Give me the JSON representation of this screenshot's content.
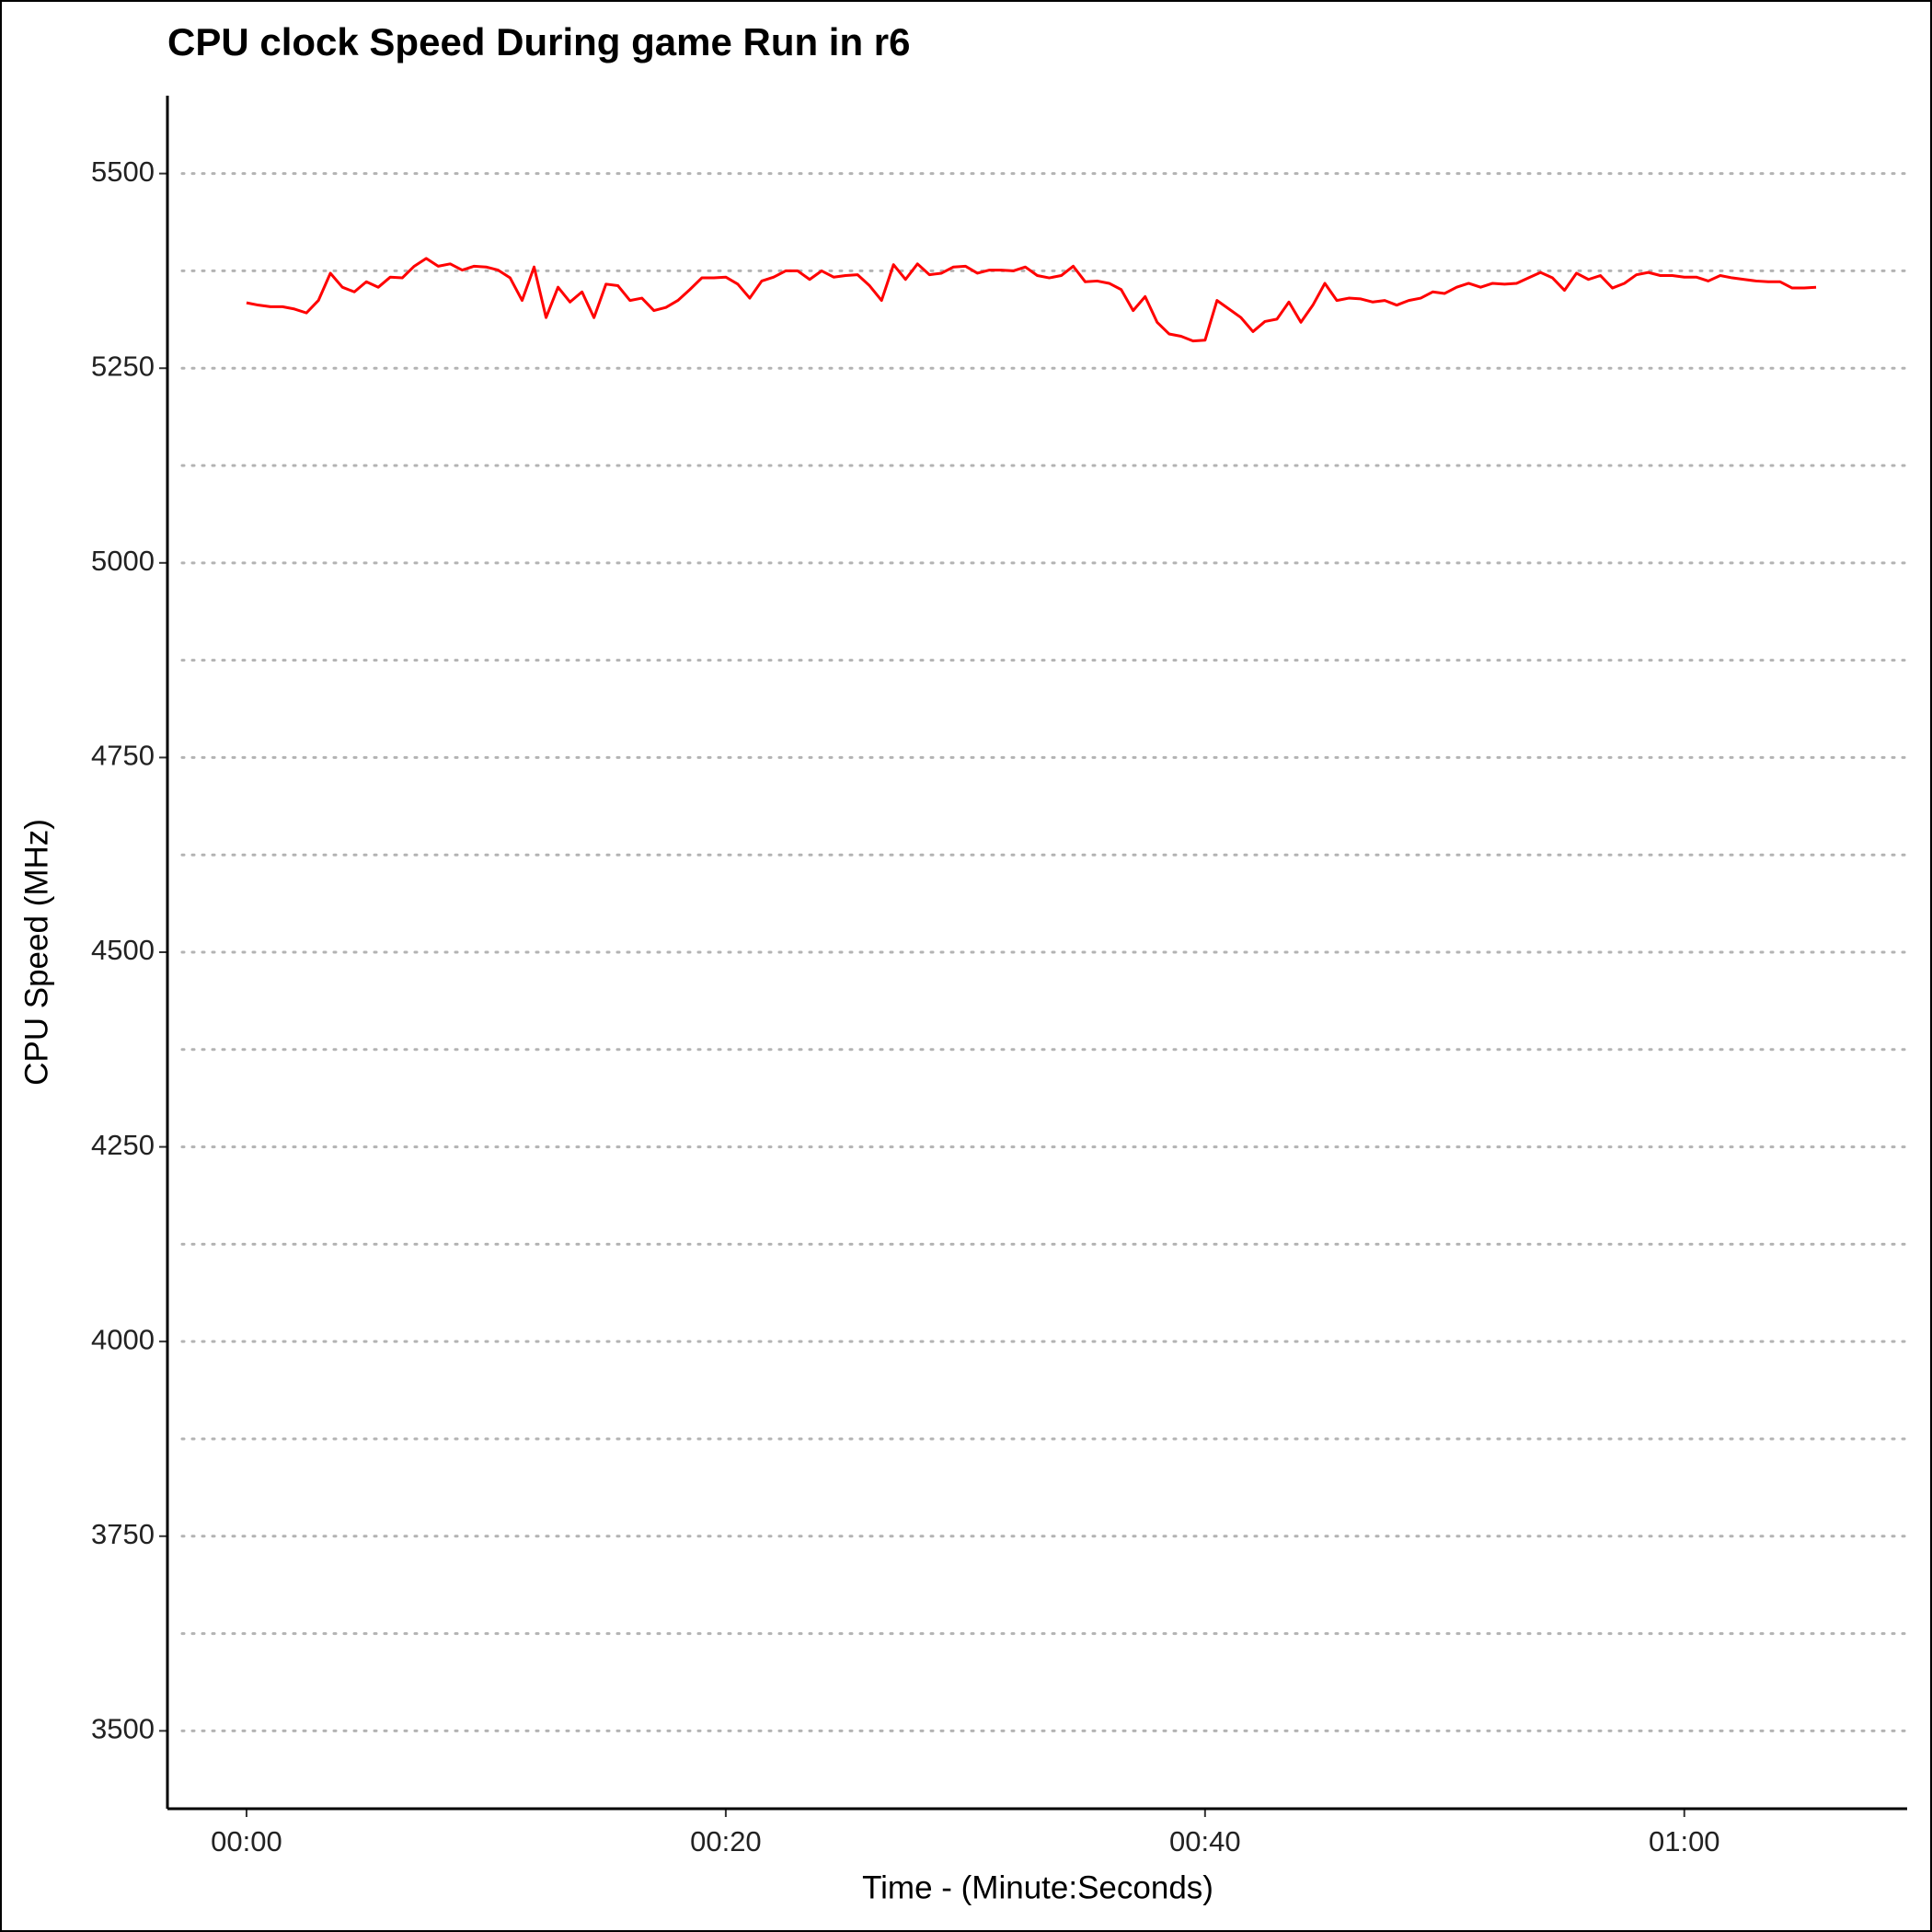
{
  "chart_data": {
    "type": "line",
    "title": "CPU clock Speed During game Run in r6",
    "x_label": "Time - (Minute:Seconds)",
    "y_label": "CPU Speed (MHz)",
    "x": [
      0,
      0.5,
      1,
      1.5,
      2,
      2.5,
      3,
      3.5,
      4,
      4.5,
      5,
      5.5,
      6,
      6.5,
      7,
      7.5,
      8,
      8.5,
      9,
      9.5,
      10,
      10.5,
      11,
      11.5,
      12,
      12.5,
      13,
      13.5,
      14,
      14.5,
      15,
      15.5,
      16,
      16.5,
      17,
      17.5,
      18,
      18.5,
      19,
      19.5,
      20,
      20.5,
      21,
      21.5,
      22,
      22.5,
      23,
      23.5,
      24,
      24.5,
      25,
      25.5,
      26,
      26.5,
      27,
      27.5,
      28,
      28.5,
      29,
      29.5,
      30,
      30.5,
      31,
      31.5,
      32,
      32.5,
      33,
      33.5,
      34,
      34.5,
      35,
      35.5,
      36,
      36.5,
      37,
      37.5,
      38,
      38.5,
      39,
      39.5,
      40,
      40.5,
      41,
      41.5,
      42,
      42.5,
      43,
      43.5,
      44,
      44.5,
      45,
      45.5,
      46,
      46.5,
      47,
      47.5,
      48,
      48.5,
      49,
      49.5,
      50,
      50.5,
      51,
      51.5,
      52,
      52.5,
      53,
      53.5,
      54,
      54.5,
      55,
      55.5,
      56,
      56.5,
      57,
      57.5,
      58,
      58.5,
      59,
      59.5,
      60,
      60.5,
      61,
      61.5,
      62,
      62.5,
      63,
      63.5,
      64,
      64.5,
      65,
      65.5
    ],
    "series": [
      {
        "name": "CPU Speed",
        "color": "#ff0000",
        "values": [
          5334,
          5331,
          5329,
          5329,
          5326,
          5321,
          5337,
          5372,
          5354,
          5348,
          5361,
          5354,
          5367,
          5366,
          5381,
          5391,
          5381,
          5384,
          5376,
          5381,
          5380,
          5376,
          5366,
          5337,
          5380,
          5315,
          5354,
          5335,
          5348,
          5315,
          5358,
          5356,
          5337,
          5340,
          5324,
          5328,
          5337,
          5351,
          5366,
          5366,
          5367,
          5358,
          5340,
          5362,
          5367,
          5375,
          5375,
          5364,
          5375,
          5367,
          5369,
          5370,
          5356,
          5337,
          5383,
          5364,
          5384,
          5370,
          5372,
          5380,
          5381,
          5372,
          5376,
          5376,
          5375,
          5380,
          5369,
          5366,
          5369,
          5381,
          5361,
          5362,
          5359,
          5351,
          5324,
          5342,
          5309,
          5294,
          5291,
          5285,
          5286,
          5337,
          5326,
          5315,
          5297,
          5310,
          5313,
          5335,
          5309,
          5331,
          5359,
          5337,
          5340,
          5339,
          5335,
          5337,
          5331,
          5337,
          5340,
          5348,
          5346,
          5354,
          5359,
          5354,
          5359,
          5358,
          5359,
          5366,
          5373,
          5366,
          5350,
          5372,
          5364,
          5369,
          5353,
          5359,
          5370,
          5373,
          5369,
          5369,
          5367,
          5367,
          5362,
          5369,
          5366,
          5364,
          5362,
          5361,
          5361,
          5353,
          5353,
          5354
        ]
      }
    ],
    "xlim": [
      -3.3,
      69.3
    ],
    "xticks": [
      {
        "value": 0,
        "label": "00:00"
      },
      {
        "value": 20,
        "label": "00:20"
      },
      {
        "value": 40,
        "label": "00:40"
      },
      {
        "value": 60,
        "label": "01:00"
      }
    ],
    "ylim": [
      3400,
      5600
    ],
    "yticks": [
      3500,
      3750,
      4000,
      4250,
      4500,
      4750,
      5000,
      5250,
      5500
    ],
    "minor_grid": [
      3625,
      3875,
      4125,
      4375,
      4625,
      4875,
      5125,
      5375
    ],
    "grid": true
  }
}
